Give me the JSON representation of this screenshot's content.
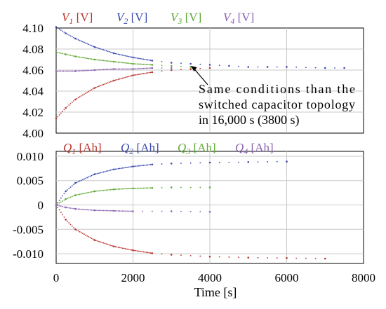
{
  "chart_data": [
    {
      "type": "scatter",
      "ylim": [
        4.0,
        4.1
      ],
      "xlim": [
        0,
        8000
      ],
      "y_ticks": [
        "4.10",
        "4.08",
        "4.06",
        "4.04",
        "4.02",
        "4.00"
      ],
      "y_tick_values": [
        4.1,
        4.08,
        4.06,
        4.04,
        4.02,
        4.0
      ],
      "grid": true,
      "legend_position": "top",
      "series": [
        {
          "var": "V",
          "sub": "1",
          "unit": "[V]",
          "color": "#b8322a",
          "x": [
            0,
            250,
            500,
            1000,
            1500,
            2000,
            2500,
            3000,
            3500,
            4000
          ],
          "y": [
            4.014,
            4.024,
            4.032,
            4.043,
            4.05,
            4.055,
            4.058,
            4.06,
            4.061,
            4.062
          ]
        },
        {
          "var": "V",
          "sub": "2",
          "unit": "[V]",
          "color": "#3a48b0",
          "x": [
            0,
            250,
            500,
            1000,
            1500,
            2000,
            2500,
            3000,
            3500,
            4000,
            4500,
            5000,
            5500,
            6000,
            7000,
            7500
          ],
          "y": [
            4.101,
            4.095,
            4.09,
            4.082,
            4.076,
            4.072,
            4.069,
            4.067,
            4.066,
            4.065,
            4.064,
            4.063,
            4.063,
            4.063,
            4.062,
            4.062
          ]
        },
        {
          "var": "V",
          "sub": "3",
          "unit": "[V]",
          "color": "#5ea832",
          "x": [
            0,
            250,
            500,
            1000,
            1500,
            2000,
            2500,
            3000,
            3500
          ],
          "y": [
            4.077,
            4.075,
            4.073,
            4.07,
            4.068,
            4.066,
            4.065,
            4.064,
            4.063
          ]
        },
        {
          "var": "V",
          "sub": "4",
          "unit": "[V]",
          "color": "#8a60b0",
          "x": [
            0,
            500,
            1000,
            1500,
            2000,
            2500,
            3000
          ],
          "y": [
            4.059,
            4.059,
            4.06,
            4.061,
            4.061,
            4.062,
            4.062
          ]
        }
      ],
      "annotation": {
        "lines": [
          "Same conditions than the",
          "switched capacitor topology",
          "in 16,000 s (3800 s)"
        ],
        "arrow_to": {
          "x": 3500,
          "y": 4.064
        }
      }
    },
    {
      "type": "scatter",
      "ylim": [
        -0.012,
        0.011
      ],
      "xlim": [
        0,
        8000
      ],
      "y_ticks": [
        "0.010",
        "0.005",
        "0",
        "-0.005",
        "-0.010"
      ],
      "y_tick_values": [
        0.01,
        0.005,
        0,
        -0.005,
        -0.01
      ],
      "x_ticks": [
        "0",
        "2000",
        "4000",
        "6000",
        "8000"
      ],
      "x_tick_values": [
        0,
        2000,
        4000,
        6000,
        8000
      ],
      "xlabel": "Time [s]",
      "grid": true,
      "legend_position": "top",
      "series": [
        {
          "var": "Q",
          "sub": "1",
          "unit": "[Ah]",
          "color": "#b8322a",
          "x": [
            0,
            250,
            500,
            1000,
            1500,
            2000,
            2500,
            3000,
            4000,
            5000,
            6000,
            7000
          ],
          "y": [
            0.0,
            -0.003,
            -0.005,
            -0.0072,
            -0.0085,
            -0.0093,
            -0.0099,
            -0.0102,
            -0.0106,
            -0.0108,
            -0.0109,
            -0.011
          ]
        },
        {
          "var": "Q",
          "sub": "2",
          "unit": "[Ah]",
          "color": "#3a48b0",
          "x": [
            0,
            250,
            500,
            1000,
            1500,
            2000,
            2500,
            3000,
            4000,
            5000,
            6000
          ],
          "y": [
            0.0,
            0.0028,
            0.0045,
            0.0063,
            0.0073,
            0.0079,
            0.0083,
            0.0085,
            0.0087,
            0.0088,
            0.0089
          ]
        },
        {
          "var": "Q",
          "sub": "3",
          "unit": "[Ah]",
          "color": "#5ea832",
          "x": [
            0,
            250,
            500,
            1000,
            1500,
            2000,
            2500,
            3000,
            4000
          ],
          "y": [
            0.0,
            0.0012,
            0.002,
            0.0028,
            0.0032,
            0.0034,
            0.0035,
            0.0036,
            0.0036
          ]
        },
        {
          "var": "Q",
          "sub": "4",
          "unit": "[Ah]",
          "color": "#8a60b0",
          "x": [
            0,
            250,
            500,
            1000,
            1500,
            2000,
            3000,
            4000
          ],
          "y": [
            0.0,
            -0.0005,
            -0.0008,
            -0.0011,
            -0.0012,
            -0.0013,
            -0.0013,
            -0.0014
          ]
        }
      ]
    }
  ]
}
